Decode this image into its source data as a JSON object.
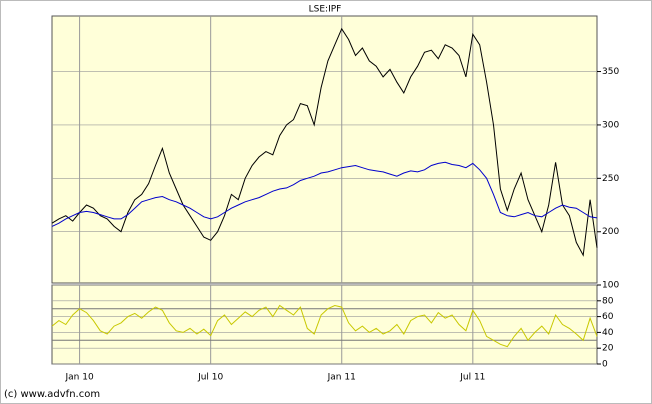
{
  "chart_data": [
    {
      "type": "line",
      "title": "LSE:IPF",
      "categories": [
        null,
        null,
        null,
        null,
        "Jan 10",
        null,
        null,
        null,
        null,
        null,
        null,
        null,
        null,
        null,
        null,
        null,
        null,
        null,
        null,
        null,
        null,
        null,
        null,
        "Jul 10",
        null,
        null,
        null,
        null,
        null,
        null,
        null,
        null,
        null,
        null,
        null,
        null,
        null,
        null,
        null,
        null,
        null,
        null,
        "Jan 11",
        null,
        null,
        null,
        null,
        null,
        null,
        null,
        null,
        null,
        null,
        null,
        null,
        null,
        null,
        null,
        null,
        null,
        null,
        "Jul 11",
        null,
        null,
        null,
        null,
        null,
        null,
        null,
        null,
        null,
        null,
        null,
        null,
        null,
        null,
        null,
        null,
        null,
        null
      ],
      "series": [
        {
          "color": "#000000",
          "values": [
            208,
            212,
            215,
            210,
            218,
            225,
            222,
            215,
            212,
            205,
            200,
            218,
            230,
            235,
            245,
            262,
            278,
            255,
            240,
            225,
            215,
            205,
            195,
            192,
            200,
            215,
            235,
            230,
            250,
            262,
            270,
            275,
            272,
            290,
            300,
            305,
            320,
            318,
            300,
            335,
            360,
            375,
            390,
            380,
            365,
            372,
            360,
            355,
            345,
            352,
            340,
            330,
            345,
            355,
            368,
            370,
            362,
            375,
            372,
            365,
            345,
            385,
            375,
            340,
            300,
            240,
            220,
            240,
            255,
            230,
            215,
            200,
            225,
            265,
            225,
            215,
            190,
            178,
            230,
            185
          ]
        },
        {
          "color": "#0000cc",
          "values": [
            205,
            208,
            212,
            215,
            218,
            219,
            218,
            216,
            214,
            212,
            212,
            216,
            222,
            228,
            230,
            232,
            233,
            230,
            228,
            225,
            222,
            218,
            214,
            212,
            214,
            218,
            222,
            225,
            228,
            230,
            232,
            235,
            238,
            240,
            241,
            244,
            248,
            250,
            252,
            255,
            256,
            258,
            260,
            261,
            262,
            260,
            258,
            257,
            256,
            254,
            252,
            255,
            257,
            256,
            258,
            262,
            264,
            265,
            263,
            262,
            260,
            264,
            258,
            250,
            235,
            218,
            215,
            214,
            216,
            218,
            215,
            214,
            218,
            222,
            225,
            223,
            222,
            218,
            214,
            213
          ]
        }
      ],
      "ylim": [
        152,
        402
      ],
      "yticks": [
        200,
        250,
        300,
        350
      ],
      "grid": true
    },
    {
      "type": "line",
      "categories": [
        null,
        null,
        null,
        null,
        "Jan 10",
        null,
        null,
        null,
        null,
        null,
        null,
        null,
        null,
        null,
        null,
        null,
        null,
        null,
        null,
        null,
        null,
        null,
        null,
        "Jul 10",
        null,
        null,
        null,
        null,
        null,
        null,
        null,
        null,
        null,
        null,
        null,
        null,
        null,
        null,
        null,
        null,
        null,
        null,
        "Jan 11",
        null,
        null,
        null,
        null,
        null,
        null,
        null,
        null,
        null,
        null,
        null,
        null,
        null,
        null,
        null,
        null,
        null,
        null,
        "Jul 11",
        null,
        null,
        null,
        null,
        null,
        null,
        null,
        null,
        null,
        null,
        null,
        null,
        null,
        null,
        null,
        null,
        null,
        null
      ],
      "series": [
        {
          "color": "#c8c800",
          "values": [
            48,
            55,
            50,
            62,
            70,
            65,
            55,
            42,
            38,
            48,
            52,
            60,
            64,
            58,
            66,
            72,
            68,
            52,
            42,
            40,
            45,
            38,
            44,
            36,
            55,
            62,
            50,
            58,
            66,
            60,
            68,
            72,
            60,
            74,
            68,
            62,
            72,
            45,
            38,
            62,
            70,
            74,
            72,
            52,
            42,
            48,
            40,
            45,
            38,
            42,
            50,
            38,
            55,
            60,
            62,
            52,
            65,
            58,
            62,
            50,
            42,
            68,
            55,
            35,
            30,
            25,
            22,
            35,
            45,
            30,
            40,
            48,
            38,
            62,
            50,
            45,
            38,
            30,
            58,
            35
          ]
        }
      ],
      "ylim": [
        0,
        100
      ],
      "yticks": [
        0,
        20,
        40,
        60,
        80,
        100
      ],
      "reference_lines": [
        30,
        70
      ],
      "grid": true
    }
  ],
  "footer": "(c) www.advfn.com"
}
